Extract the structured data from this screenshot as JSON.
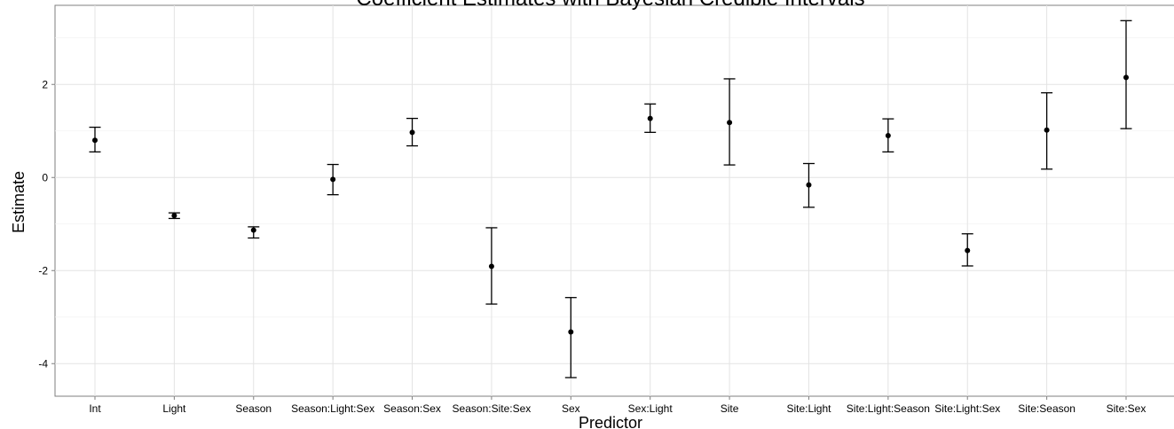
{
  "chart_data": {
    "type": "errorbar",
    "title": "Coefficient Estimates with Bayesian Credible Intervals",
    "xlabel": "Predictor",
    "ylabel": "Estimate",
    "ylim": [
      -4.7,
      3.7
    ],
    "yticks": [
      -4,
      -2,
      0,
      2
    ],
    "grid": true,
    "legend": "none",
    "categories": [
      "Int",
      "Light",
      "Season",
      "Season:Light:Sex",
      "Season:Sex",
      "Season:Site:Sex",
      "Sex",
      "Sex:Light",
      "Site",
      "Site:Light",
      "Site:Light:Season",
      "Site:Light:Sex",
      "Site:Season",
      "Site:Sex"
    ],
    "series": [
      {
        "estimate": [
          0.8,
          -0.82,
          -1.13,
          -0.04,
          0.97,
          -1.91,
          -3.32,
          1.27,
          1.18,
          -0.16,
          0.9,
          -1.57,
          1.02,
          2.15
        ],
        "lower": [
          0.55,
          -0.88,
          -1.3,
          -0.37,
          0.68,
          -2.72,
          -4.3,
          0.97,
          0.27,
          -0.64,
          0.55,
          -1.9,
          0.18,
          1.05
        ],
        "upper": [
          1.08,
          -0.76,
          -1.06,
          0.28,
          1.27,
          -1.08,
          -2.58,
          1.58,
          2.12,
          0.3,
          1.26,
          -1.21,
          1.82,
          3.37
        ]
      }
    ]
  }
}
